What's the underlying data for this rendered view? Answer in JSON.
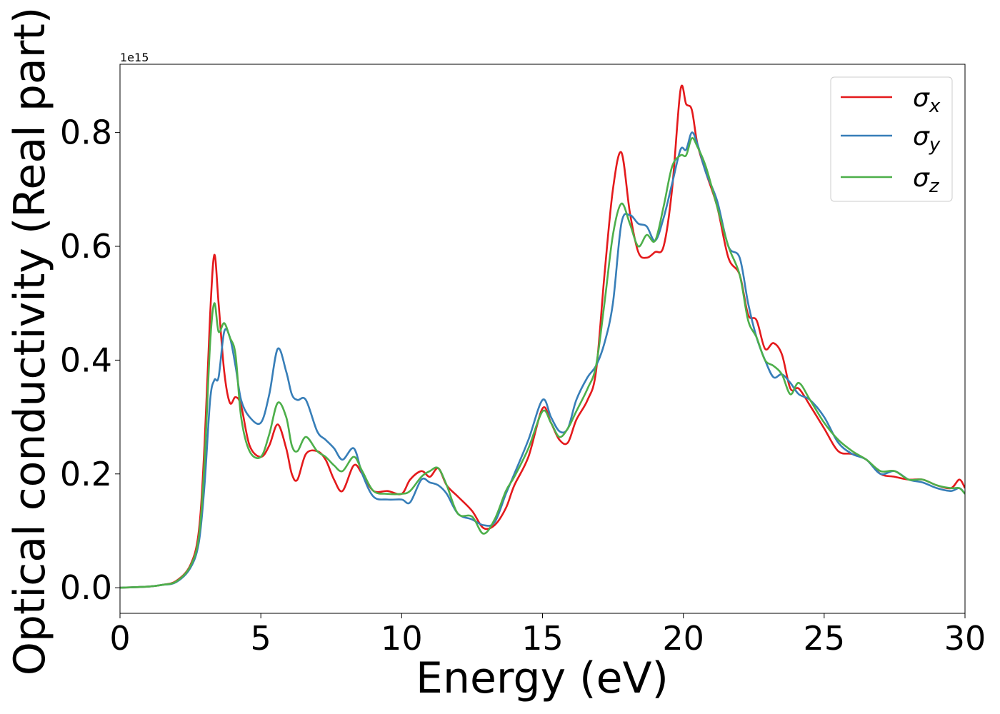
{
  "chart_data": {
    "type": "line",
    "xlabel": "Energy (eV)",
    "ylabel": "Optical conductivity (Real part)",
    "offset_text": "1e15",
    "xlim": [
      0,
      30
    ],
    "ylim": [
      -0.045,
      0.92
    ],
    "xticks": [
      0,
      5,
      10,
      15,
      20,
      25,
      30
    ],
    "xtick_labels": [
      "0",
      "5",
      "10",
      "15",
      "20",
      "25",
      "30"
    ],
    "yticks": [
      0.0,
      0.2,
      0.4,
      0.6,
      0.8
    ],
    "ytick_labels": [
      "0.0",
      "0.2",
      "0.4",
      "0.6",
      "0.8"
    ],
    "grid": false,
    "legend": {
      "position": "top-right",
      "entries": [
        {
          "symbol": "σ",
          "sub": "x",
          "color": "#e41a1c"
        },
        {
          "symbol": "σ",
          "sub": "y",
          "color": "#377eb8"
        },
        {
          "symbol": "σ",
          "sub": "z",
          "color": "#4daf4a"
        }
      ]
    },
    "series": [
      {
        "color": "#e41a1c",
        "x": [
          0,
          1,
          1.5,
          2,
          2.5,
          2.8,
          3.0,
          3.2,
          3.35,
          3.5,
          3.7,
          3.9,
          4.1,
          4.3,
          4.6,
          5.0,
          5.3,
          5.6,
          5.9,
          6.1,
          6.3,
          6.6,
          7.0,
          7.3,
          7.6,
          7.9,
          8.3,
          8.6,
          9.0,
          9.5,
          10.0,
          10.3,
          10.7,
          11.0,
          11.3,
          11.6,
          12.0,
          12.5,
          12.9,
          13.3,
          13.7,
          14.0,
          14.5,
          15.0,
          15.3,
          15.6,
          15.9,
          16.2,
          16.6,
          16.9,
          17.2,
          17.5,
          17.8,
          18.1,
          18.4,
          18.7,
          19.0,
          19.3,
          19.6,
          19.9,
          20.1,
          20.3,
          20.5,
          20.8,
          21.2,
          21.6,
          22.0,
          22.3,
          22.6,
          22.9,
          23.2,
          23.5,
          23.8,
          24.1,
          24.5,
          25.0,
          25.5,
          26.0,
          26.5,
          27.0,
          27.5,
          28.0,
          28.5,
          29.0,
          29.5,
          29.8,
          30.0
        ],
        "y": [
          0.0,
          0.002,
          0.005,
          0.012,
          0.04,
          0.1,
          0.25,
          0.48,
          0.585,
          0.5,
          0.38,
          0.325,
          0.335,
          0.32,
          0.25,
          0.23,
          0.25,
          0.287,
          0.245,
          0.2,
          0.19,
          0.235,
          0.24,
          0.225,
          0.19,
          0.17,
          0.215,
          0.2,
          0.17,
          0.17,
          0.165,
          0.19,
          0.205,
          0.195,
          0.21,
          0.18,
          0.16,
          0.135,
          0.105,
          0.11,
          0.14,
          0.18,
          0.23,
          0.315,
          0.29,
          0.26,
          0.255,
          0.295,
          0.33,
          0.38,
          0.55,
          0.7,
          0.765,
          0.66,
          0.59,
          0.58,
          0.59,
          0.6,
          0.7,
          0.875,
          0.85,
          0.84,
          0.78,
          0.73,
          0.67,
          0.58,
          0.55,
          0.48,
          0.47,
          0.42,
          0.43,
          0.41,
          0.35,
          0.35,
          0.32,
          0.28,
          0.24,
          0.235,
          0.225,
          0.2,
          0.195,
          0.19,
          0.19,
          0.18,
          0.175,
          0.19,
          0.175
        ]
      },
      {
        "color": "#377eb8",
        "x": [
          0,
          1,
          1.5,
          2,
          2.5,
          2.8,
          3.0,
          3.2,
          3.35,
          3.5,
          3.7,
          3.9,
          4.1,
          4.3,
          4.6,
          5.0,
          5.3,
          5.6,
          5.9,
          6.1,
          6.3,
          6.6,
          7.0,
          7.3,
          7.6,
          7.9,
          8.3,
          8.6,
          9.0,
          9.5,
          10.0,
          10.3,
          10.7,
          11.0,
          11.3,
          11.6,
          12.0,
          12.5,
          12.9,
          13.3,
          13.7,
          14.0,
          14.5,
          15.0,
          15.3,
          15.6,
          15.9,
          16.2,
          16.6,
          16.9,
          17.2,
          17.5,
          17.8,
          18.1,
          18.4,
          18.7,
          19.0,
          19.3,
          19.6,
          19.9,
          20.1,
          20.3,
          20.5,
          20.8,
          21.2,
          21.6,
          22.0,
          22.3,
          22.6,
          22.9,
          23.2,
          23.5,
          23.8,
          24.1,
          24.5,
          25.0,
          25.5,
          26.0,
          26.5,
          27.0,
          27.5,
          28.0,
          28.5,
          29.0,
          29.5,
          29.8,
          30.0
        ],
        "y": [
          0.0,
          0.002,
          0.005,
          0.01,
          0.035,
          0.08,
          0.18,
          0.33,
          0.365,
          0.37,
          0.45,
          0.44,
          0.39,
          0.33,
          0.3,
          0.29,
          0.34,
          0.42,
          0.38,
          0.34,
          0.33,
          0.33,
          0.275,
          0.26,
          0.245,
          0.225,
          0.245,
          0.2,
          0.16,
          0.155,
          0.155,
          0.15,
          0.19,
          0.185,
          0.18,
          0.165,
          0.13,
          0.12,
          0.11,
          0.115,
          0.165,
          0.2,
          0.26,
          0.33,
          0.3,
          0.275,
          0.28,
          0.33,
          0.37,
          0.39,
          0.43,
          0.5,
          0.64,
          0.655,
          0.64,
          0.635,
          0.61,
          0.65,
          0.71,
          0.77,
          0.77,
          0.8,
          0.78,
          0.73,
          0.68,
          0.6,
          0.58,
          0.5,
          0.44,
          0.4,
          0.37,
          0.375,
          0.36,
          0.34,
          0.33,
          0.3,
          0.255,
          0.235,
          0.225,
          0.2,
          0.205,
          0.19,
          0.185,
          0.175,
          0.17,
          0.175,
          0.165
        ]
      },
      {
        "color": "#4daf4a",
        "x": [
          0,
          1,
          1.5,
          2,
          2.5,
          2.8,
          3.0,
          3.2,
          3.35,
          3.5,
          3.7,
          3.9,
          4.1,
          4.3,
          4.6,
          5.0,
          5.3,
          5.6,
          5.9,
          6.1,
          6.3,
          6.6,
          7.0,
          7.3,
          7.6,
          7.9,
          8.3,
          8.6,
          9.0,
          9.5,
          10.0,
          10.3,
          10.7,
          11.0,
          11.3,
          11.6,
          12.0,
          12.5,
          12.9,
          13.3,
          13.7,
          14.0,
          14.5,
          15.0,
          15.3,
          15.6,
          15.9,
          16.2,
          16.6,
          16.9,
          17.2,
          17.5,
          17.8,
          18.1,
          18.4,
          18.7,
          19.0,
          19.3,
          19.6,
          19.9,
          20.1,
          20.3,
          20.5,
          20.8,
          21.2,
          21.6,
          22.0,
          22.3,
          22.6,
          22.9,
          23.2,
          23.5,
          23.8,
          24.1,
          24.5,
          25.0,
          25.5,
          26.0,
          26.5,
          27.0,
          27.5,
          28.0,
          28.5,
          29.0,
          29.5,
          29.8,
          30.0
        ],
        "y": [
          0.0,
          0.002,
          0.005,
          0.011,
          0.038,
          0.09,
          0.22,
          0.43,
          0.5,
          0.45,
          0.465,
          0.44,
          0.41,
          0.3,
          0.24,
          0.23,
          0.27,
          0.325,
          0.3,
          0.25,
          0.24,
          0.265,
          0.24,
          0.23,
          0.215,
          0.205,
          0.23,
          0.205,
          0.17,
          0.165,
          0.165,
          0.17,
          0.195,
          0.205,
          0.21,
          0.18,
          0.13,
          0.125,
          0.095,
          0.12,
          0.17,
          0.195,
          0.245,
          0.31,
          0.29,
          0.265,
          0.28,
          0.31,
          0.35,
          0.39,
          0.5,
          0.62,
          0.675,
          0.64,
          0.6,
          0.62,
          0.61,
          0.67,
          0.74,
          0.76,
          0.76,
          0.79,
          0.775,
          0.74,
          0.67,
          0.6,
          0.55,
          0.47,
          0.44,
          0.4,
          0.39,
          0.375,
          0.34,
          0.36,
          0.33,
          0.29,
          0.26,
          0.24,
          0.225,
          0.205,
          0.205,
          0.19,
          0.19,
          0.18,
          0.175,
          0.175,
          0.165
        ]
      }
    ]
  }
}
